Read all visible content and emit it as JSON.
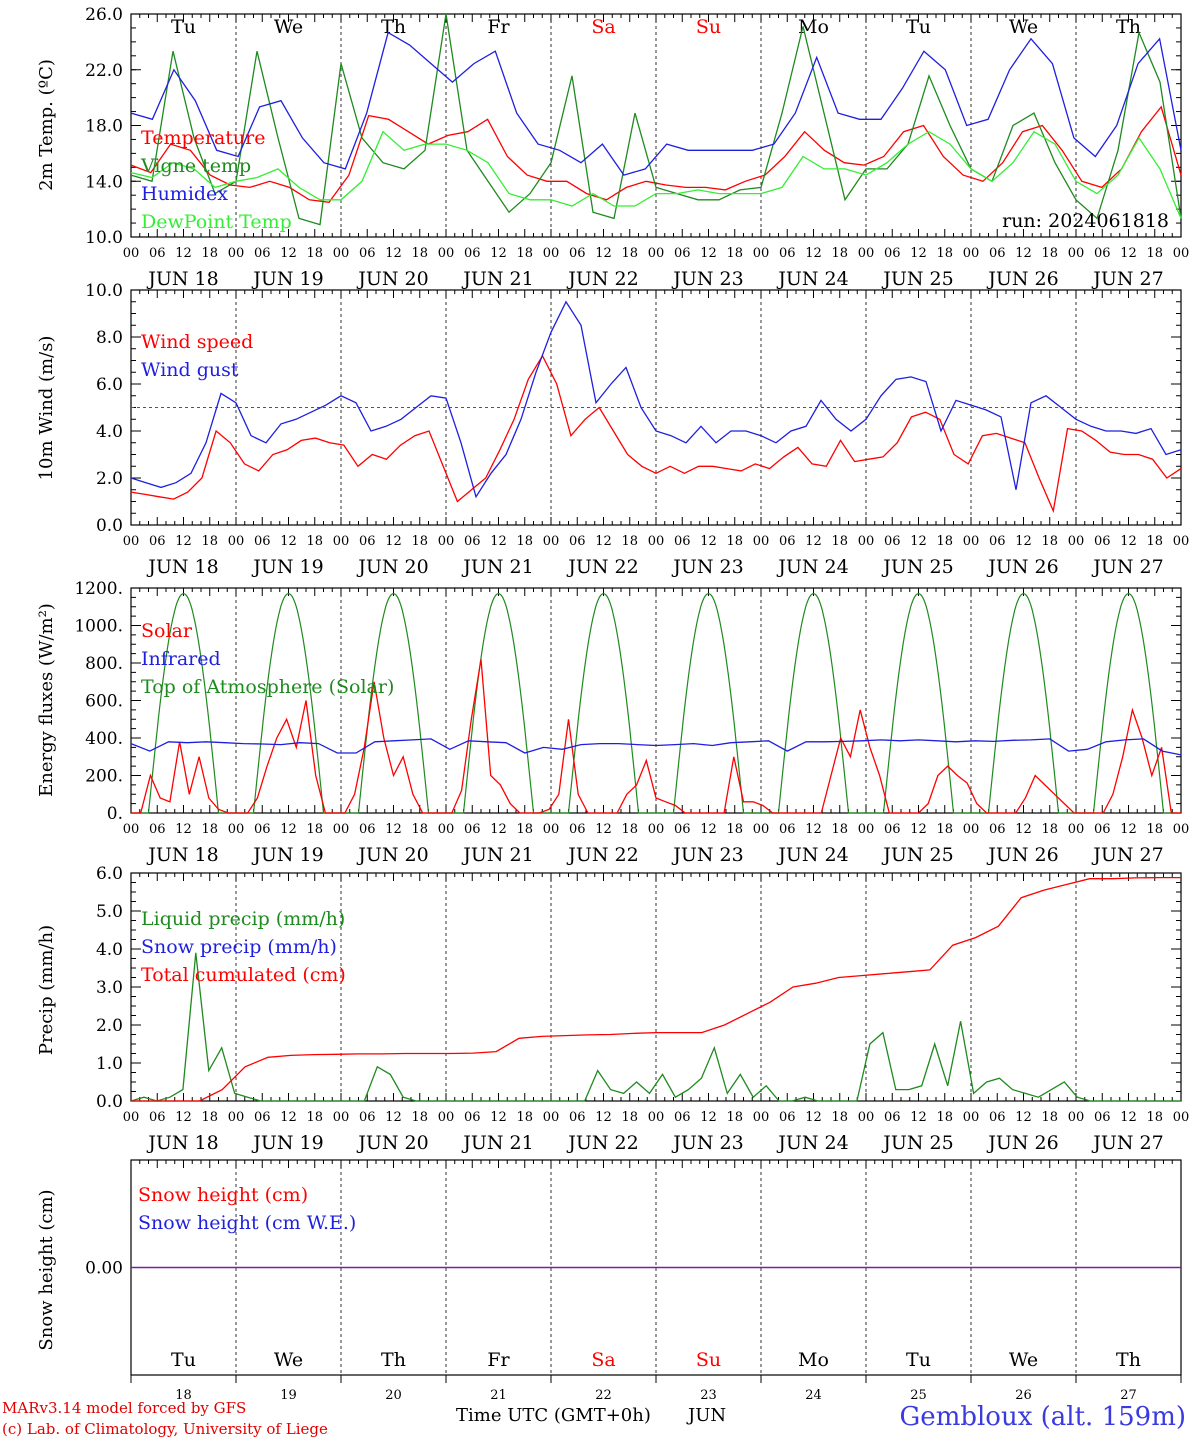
{
  "colors": {
    "red": "#ff0000",
    "green": "#1f8a1f",
    "blue": "#1f1fdf",
    "lightgreen": "#33ee33",
    "purple": "#7a1fa0",
    "dark": "#000000"
  },
  "time_axis": {
    "hour_labels": [
      "00",
      "06",
      "12",
      "18"
    ],
    "end_label": "00",
    "day_labels": [
      "JUN 18",
      "JUN 19",
      "JUN 20",
      "JUN 21",
      "JUN 22",
      "JUN 23",
      "JUN 24",
      "JUN 25",
      "JUN 26",
      "JUN 27"
    ],
    "weekdays": [
      "Tu",
      "We",
      "Th",
      "Fr",
      "Sa",
      "Su",
      "Mo",
      "Tu",
      "We",
      "Th"
    ],
    "weekend_index": [
      4,
      5
    ],
    "day_numbers": [
      "18",
      "19",
      "20",
      "21",
      "22",
      "23",
      "24",
      "25",
      "26",
      "27"
    ]
  },
  "footer": {
    "model": "MARv3.14 model forced by GFS",
    "lab": "(c) Lab. of Climatology, University of Liege",
    "axis_title": "Time UTC (GMT+0h)",
    "month": "JUN",
    "station": "Gembloux (alt. 159m)"
  },
  "chart_data": [
    {
      "type": "line",
      "ylabel": "2m Temp. (ºC)",
      "ylim": [
        10,
        28
      ],
      "yticks": [
        "10.0",
        "14.0",
        "18.0",
        "22.0",
        "26.0"
      ],
      "run_label": "run: 2024061818",
      "legend": [
        "Temperature",
        "Vigne temp",
        "Humidex",
        "DewPoint Temp"
      ],
      "series": [
        {
          "name": "Temperature",
          "color": "red",
          "values": [
            15.8,
            15.2,
            17.5,
            17.0,
            15.0,
            14.2,
            14.0,
            14.5,
            14.0,
            13.0,
            12.8,
            15.0,
            19.8,
            19.5,
            18.5,
            17.5,
            18.2,
            18.5,
            19.5,
            16.5,
            15.0,
            14.5,
            14.5,
            13.5,
            13.0,
            14.0,
            14.5,
            14.2,
            14.0,
            14.0,
            13.8,
            14.5,
            15.0,
            16.5,
            18.5,
            17.0,
            16.0,
            15.8,
            16.5,
            18.5,
            19.0,
            16.5,
            15.0,
            14.5,
            16.0,
            18.5,
            19.0,
            17.0,
            14.5,
            14.0,
            15.5,
            18.5,
            20.5,
            15.0
          ]
        },
        {
          "name": "Vigne temp",
          "color": "green",
          "values": [
            15.0,
            14.5,
            25.0,
            18.0,
            13.5,
            14.5,
            25.0,
            18.0,
            11.5,
            11.0,
            24.0,
            18.0,
            16.0,
            15.5,
            17.0,
            28.0,
            17.0,
            14.5,
            12.0,
            13.5,
            16.0,
            23.0,
            12.0,
            11.5,
            20.0,
            14.0,
            13.5,
            13.0,
            13.0,
            13.8,
            14.0,
            20.0,
            27.0,
            20.0,
            13.0,
            15.5,
            15.5,
            17.5,
            23.0,
            19.0,
            15.5,
            14.5,
            19.0,
            20.0,
            16.0,
            13.0,
            11.5,
            17.0,
            26.5,
            22.5,
            11.5
          ]
        },
        {
          "name": "Humidex",
          "color": "blue",
          "values": [
            20.0,
            19.5,
            23.5,
            21.0,
            17.0,
            16.5,
            20.5,
            21.0,
            18.0,
            16.0,
            15.5,
            20.0,
            26.5,
            25.5,
            24.0,
            22.5,
            24.0,
            25.0,
            20.0,
            17.5,
            17.0,
            16.0,
            17.5,
            15.0,
            15.5,
            17.5,
            17.0,
            17.0,
            17.0,
            17.0,
            17.5,
            20.0,
            24.5,
            20.0,
            19.5,
            19.5,
            22.0,
            25.0,
            23.5,
            19.0,
            19.5,
            23.5,
            26.0,
            24.0,
            18.0,
            16.5,
            19.0,
            24.0,
            26.0,
            17.0
          ]
        },
        {
          "name": "DewPoint Temp",
          "color": "lightgreen",
          "values": [
            15.2,
            14.8,
            16.0,
            15.5,
            14.0,
            14.5,
            14.8,
            15.5,
            14.0,
            13.0,
            13.0,
            14.5,
            18.5,
            17.0,
            17.5,
            17.5,
            17.0,
            16.0,
            13.5,
            13.0,
            13.0,
            12.5,
            13.5,
            12.5,
            12.5,
            13.5,
            13.5,
            13.8,
            13.5,
            13.5,
            13.5,
            14.0,
            16.5,
            15.5,
            15.5,
            15.0,
            16.0,
            17.5,
            18.5,
            17.5,
            15.5,
            14.5,
            16.0,
            18.5,
            17.5,
            14.5,
            13.5,
            15.0,
            18.0,
            15.5,
            11.5
          ]
        }
      ]
    },
    {
      "type": "line",
      "ylabel": "10m Wind (m/s)",
      "ylim": [
        0,
        10
      ],
      "yticks": [
        "0.0",
        "2.0",
        "4.0",
        "6.0",
        "8.0",
        "10.0"
      ],
      "reference_line": 5,
      "legend": [
        "Wind speed",
        "Wind gust"
      ],
      "series": [
        {
          "name": "Wind speed",
          "color": "red",
          "values": [
            1.4,
            1.3,
            1.2,
            1.1,
            1.4,
            2.0,
            4.0,
            3.5,
            2.6,
            2.3,
            3.0,
            3.2,
            3.6,
            3.7,
            3.5,
            3.4,
            2.5,
            3.0,
            2.8,
            3.4,
            3.8,
            4.0,
            2.5,
            1.0,
            1.5,
            2.0,
            3.2,
            4.5,
            6.2,
            7.2,
            6.0,
            3.8,
            4.5,
            5.0,
            4.0,
            3.0,
            2.5,
            2.2,
            2.5,
            2.2,
            2.5,
            2.5,
            2.4,
            2.3,
            2.6,
            2.4,
            2.9,
            3.3,
            2.6,
            2.5,
            3.6,
            2.7,
            2.8,
            2.9,
            3.5,
            4.6,
            4.8,
            4.5,
            3.0,
            2.6,
            3.8,
            3.9,
            3.7,
            3.5,
            2.0,
            0.6,
            4.1,
            4.0,
            3.6,
            3.1,
            3.0,
            3.0,
            2.8,
            2.0,
            2.4
          ]
        },
        {
          "name": "Wind gust",
          "color": "blue",
          "values": [
            2.0,
            1.8,
            1.6,
            1.8,
            2.2,
            3.5,
            5.6,
            5.2,
            3.8,
            3.5,
            4.3,
            4.5,
            4.8,
            5.1,
            5.5,
            5.2,
            4.0,
            4.2,
            4.5,
            5.0,
            5.5,
            5.4,
            3.5,
            1.2,
            2.2,
            3.0,
            4.5,
            6.5,
            8.2,
            9.5,
            8.5,
            5.2,
            6.0,
            6.7,
            5.0,
            4.0,
            3.8,
            3.5,
            4.2,
            3.5,
            4.0,
            4.0,
            3.8,
            3.5,
            4.0,
            4.2,
            5.3,
            4.5,
            4.0,
            4.5,
            5.5,
            6.2,
            6.3,
            6.1,
            4.0,
            5.3,
            5.1,
            4.9,
            4.6,
            1.5,
            5.2,
            5.5,
            5.0,
            4.5,
            4.2,
            4.0,
            4.0,
            3.9,
            4.1,
            3.0,
            3.2
          ]
        }
      ]
    },
    {
      "type": "line",
      "ylabel": "Energy fluxes (W/m²)",
      "ylim": [
        0,
        1200
      ],
      "yticks": [
        "0.",
        "200.",
        "400.",
        "600.",
        "800.",
        "1000.",
        "1200."
      ],
      "legend": [
        "Solar",
        "Infrared",
        "Top of Atmosphere (Solar)"
      ],
      "toa_peak": 1170,
      "toa_sunrise_hour": 4,
      "toa_sunset_hour": 20,
      "series": [
        {
          "name": "Solar",
          "color": "red",
          "values": [
            0,
            0,
            200,
            80,
            60,
            380,
            100,
            300,
            80,
            20,
            0,
            0,
            0,
            80,
            250,
            400,
            500,
            350,
            600,
            200,
            0,
            0,
            0,
            100,
            350,
            700,
            400,
            200,
            300,
            100,
            0,
            0,
            0,
            0,
            120,
            500,
            820,
            200,
            150,
            50,
            0,
            0,
            0,
            20,
            100,
            500,
            100,
            0,
            0,
            0,
            0,
            100,
            150,
            280,
            80,
            60,
            40,
            0,
            0,
            0,
            0,
            0,
            300,
            60,
            60,
            40,
            0,
            0,
            0,
            0,
            0,
            0,
            200,
            400,
            300,
            550,
            350,
            200,
            0,
            0,
            0,
            0,
            50,
            200,
            250,
            200,
            160,
            50,
            0,
            0,
            0,
            0,
            80,
            200,
            150,
            100,
            50,
            0,
            0,
            0,
            0,
            100,
            300,
            550,
            400,
            200,
            350,
            0,
            0
          ]
        },
        {
          "name": "Infrared",
          "color": "blue",
          "values": [
            370,
            330,
            380,
            375,
            380,
            375,
            370,
            368,
            365,
            375,
            370,
            320,
            320,
            380,
            385,
            390,
            395,
            340,
            385,
            380,
            375,
            320,
            350,
            340,
            365,
            370,
            370,
            365,
            360,
            365,
            370,
            360,
            375,
            380,
            385,
            330,
            380,
            380,
            382,
            385,
            390,
            385,
            390,
            385,
            380,
            385,
            382,
            388,
            390,
            395,
            330,
            340,
            380,
            390,
            395,
            330,
            310
          ]
        }
      ]
    },
    {
      "type": "line",
      "ylabel": "Precip (mm/h)",
      "ylim": [
        0,
        6
      ],
      "yticks": [
        "0.0",
        "1.0",
        "2.0",
        "3.0",
        "4.0",
        "5.0",
        "6.0"
      ],
      "legend": [
        "Liquid precip (mm/h)",
        "Snow precip (mm/h)",
        "Total cumulated (cm)"
      ],
      "series": [
        {
          "name": "Liquid precip (mm/h)",
          "color": "green",
          "values": [
            0,
            0.1,
            0,
            0.1,
            0.3,
            3.9,
            0.8,
            1.4,
            0.2,
            0.1,
            0,
            0,
            0,
            0,
            0,
            0,
            0,
            0,
            0,
            0.9,
            0.7,
            0.1,
            0,
            0,
            0,
            0,
            0,
            0,
            0,
            0,
            0,
            0,
            0,
            0,
            0,
            0,
            0.8,
            0.3,
            0.2,
            0.5,
            0.2,
            0.7,
            0.1,
            0.3,
            0.6,
            1.4,
            0.2,
            0.7,
            0.1,
            0.4,
            0,
            0,
            0.1,
            0,
            0,
            0,
            0,
            1.5,
            1.8,
            0.3,
            0.3,
            0.4,
            1.5,
            0.4,
            2.1,
            0.2,
            0.5,
            0.6,
            0.3,
            0.2,
            0.1,
            0.3,
            0.5,
            0.1,
            0,
            0,
            0,
            0,
            0,
            0,
            0,
            0
          ]
        },
        {
          "name": "Total cumulated (cm)",
          "color": "red",
          "values": [
            0,
            0,
            0,
            0,
            0.3,
            0.9,
            1.15,
            1.2,
            1.22,
            1.23,
            1.24,
            1.24,
            1.25,
            1.25,
            1.25,
            1.26,
            1.3,
            1.65,
            1.7,
            1.72,
            1.74,
            1.75,
            1.78,
            1.8,
            1.8,
            1.8,
            2.0,
            2.3,
            2.6,
            3.0,
            3.1,
            3.25,
            3.3,
            3.35,
            3.4,
            3.45,
            4.1,
            4.3,
            4.6,
            5.35,
            5.55,
            5.7,
            5.85,
            5.85,
            5.87,
            5.88,
            5.88
          ]
        }
      ]
    },
    {
      "type": "line",
      "ylabel": "Snow height (cm)",
      "ylim": [
        -1,
        1
      ],
      "yticks": [
        "0.00"
      ],
      "legend": [
        "Snow height (cm)",
        "Snow height (cm W.E.)"
      ],
      "series": [
        {
          "name": "Snow height (cm)",
          "color": "purple",
          "values": [
            0,
            0
          ]
        }
      ]
    }
  ]
}
